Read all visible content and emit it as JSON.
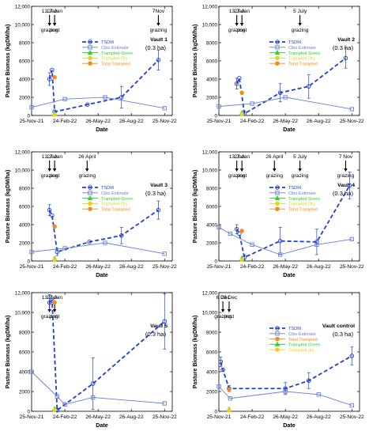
{
  "figure_colors": {
    "tsdm": "#1f3fd1",
    "cibo": "#6a7fd8",
    "trampled_green": "#2bd42b",
    "trampled_dry": "#e8d21a",
    "total_trampled": "#f08a1c",
    "axis": "#000000"
  },
  "chart_data": [
    {
      "id": "v1",
      "type": "line",
      "title": "Vault 1",
      "subtitle": "(0.3 ha)",
      "xlabel": "Date",
      "ylabel": "Pasture Biomass (kgDM/ha)",
      "xlim": [
        0,
        385
      ],
      "ylim": [
        0,
        12000
      ],
      "yticks": [
        0,
        2000,
        4000,
        6000,
        8000,
        10000,
        12000
      ],
      "ytick_labels": [
        "0",
        "2000",
        "4000",
        "6000",
        "8000",
        "10,000",
        "12,000"
      ],
      "xticks": [
        0,
        91,
        182,
        273,
        364
      ],
      "xtick_labels": [
        "25-Nov-21",
        "24-Feb-22",
        "26-May-22",
        "26-Aug-22",
        "25-Nov-22"
      ],
      "legend": [
        "TSDM",
        "Cibo Estimate",
        "Trampled Green",
        "Trampled Dry",
        "Total Trampled"
      ],
      "events": [
        {
          "x": 49,
          "top": "13 Jan",
          "bottom": "grazing"
        },
        {
          "x": 63,
          "top": "27 Jan",
          "bottom": "post"
        },
        {
          "x": 347,
          "top": "7Nov",
          "bottom": "grazing"
        }
      ],
      "series": [
        {
          "name": "TSDM",
          "x": [
            49,
            56,
            63,
            153,
            246,
            347
          ],
          "y": [
            4000,
            5000,
            400,
            1200,
            2000,
            6100
          ],
          "err": [
            700,
            0,
            200,
            0,
            1200,
            1100
          ]
        },
        {
          "name": "Cibo Estimate",
          "x": [
            0,
            91,
            201,
            364
          ],
          "y": [
            900,
            1800,
            2000,
            800
          ]
        },
        {
          "name": "Trampled Green",
          "x": [
            63
          ],
          "y": [
            200
          ]
        },
        {
          "name": "Trampled Dry",
          "x": [
            63
          ],
          "y": [
            100
          ]
        },
        {
          "name": "Total Trampled",
          "x": [
            63
          ],
          "y": [
            4200
          ]
        }
      ]
    },
    {
      "id": "v2",
      "type": "line",
      "title": "Vault 2",
      "subtitle": "(0.3 ha)",
      "xlabel": "Date",
      "ylabel": "Pasture Biomass (kgDM/ha)",
      "xlim": [
        0,
        385
      ],
      "ylim": [
        0,
        12000
      ],
      "yticks": [
        0,
        2000,
        4000,
        6000,
        8000,
        10000,
        12000
      ],
      "ytick_labels": [
        "0",
        "2000",
        "4000",
        "6000",
        "8000",
        "10,000",
        "12,000"
      ],
      "xticks": [
        0,
        91,
        182,
        273,
        364
      ],
      "xtick_labels": [
        "25-Nov-21",
        "24-Feb-22",
        "26-May-22",
        "26-Aug-22",
        "25-Nov-22"
      ],
      "legend": [
        "TSDM",
        "Cibo Estimate",
        "Trampled Green",
        "Trampled Dry",
        "Total Trampled"
      ],
      "events": [
        {
          "x": 49,
          "top": "13 Jan",
          "bottom": "grazing"
        },
        {
          "x": 63,
          "top": "27 Jan",
          "bottom": "post"
        },
        {
          "x": 222,
          "top": "5 July",
          "bottom": "grazing"
        }
      ],
      "series": [
        {
          "name": "TSDM",
          "x": [
            49,
            56,
            70,
            168,
            246,
            347
          ],
          "y": [
            3500,
            4100,
            200,
            2500,
            3200,
            6300
          ],
          "err": [
            600,
            0,
            300,
            1000,
            1300,
            1100
          ]
        },
        {
          "name": "Cibo Estimate",
          "x": [
            0,
            91,
            182,
            364
          ],
          "y": [
            1000,
            1300,
            2000,
            700
          ]
        },
        {
          "name": "Trampled Green",
          "x": [
            63
          ],
          "y": [
            300
          ]
        },
        {
          "name": "Trampled Dry",
          "x": [
            63
          ],
          "y": [
            150
          ]
        },
        {
          "name": "Total Trampled",
          "x": [
            63
          ],
          "y": [
            2500
          ]
        }
      ]
    },
    {
      "id": "v3",
      "type": "line",
      "title": "Vault 3",
      "subtitle": "(0.3 ha)",
      "xlabel": "Date",
      "ylabel": "Pasture Biomass (kgDM/ha)",
      "xlim": [
        0,
        385
      ],
      "ylim": [
        0,
        12000
      ],
      "yticks": [
        0,
        2000,
        4000,
        6000,
        8000,
        10000,
        12000
      ],
      "ytick_labels": [
        "0",
        "2000",
        "4000",
        "6000",
        "8000",
        "10,000",
        "12,000"
      ],
      "xticks": [
        0,
        91,
        182,
        273,
        364
      ],
      "xtick_labels": [
        "25-Nov-21",
        "24-Feb-22",
        "26-May-22",
        "26-Aug-22",
        "25-Nov-22"
      ],
      "legend": [
        "TSDM",
        "Cibo Estimate",
        "Trampled Green",
        "Trampled Dry",
        "Total Trampled"
      ],
      "events": [
        {
          "x": 49,
          "top": "13 Jan",
          "bottom": "grazing"
        },
        {
          "x": 63,
          "top": "27 Jan",
          "bottom": "post"
        },
        {
          "x": 152,
          "top": "26 April",
          "bottom": "grazing"
        }
      ],
      "series": [
        {
          "name": "TSDM",
          "x": [
            49,
            56,
            70,
            158,
            246,
            347
          ],
          "y": [
            5600,
            5000,
            1000,
            2100,
            2800,
            5600
          ],
          "err": [
            600,
            0,
            400,
            0,
            900,
            1000
          ]
        },
        {
          "name": "Cibo Estimate",
          "x": [
            0,
            91,
            201,
            364
          ],
          "y": [
            1000,
            1400,
            2000,
            800
          ]
        },
        {
          "name": "Trampled Green",
          "x": [
            63
          ],
          "y": [
            250
          ]
        },
        {
          "name": "Trampled Dry",
          "x": [
            63
          ],
          "y": [
            120
          ]
        },
        {
          "name": "Total Trampled",
          "x": [
            63
          ],
          "y": [
            3800
          ]
        }
      ]
    },
    {
      "id": "v4",
      "type": "line",
      "title": "Vault 4",
      "subtitle": "(0.3 ha)",
      "xlabel": "Date",
      "ylabel": "Pasture Biomass (kgDM/ha)",
      "xlim": [
        0,
        385
      ],
      "ylim": [
        0,
        12000
      ],
      "yticks": [
        0,
        2000,
        4000,
        6000,
        8000,
        10000,
        12000
      ],
      "ytick_labels": [
        "0",
        "2000",
        "4000",
        "6000",
        "8000",
        "10,000",
        "12,000"
      ],
      "xticks": [
        0,
        91,
        182,
        273,
        364
      ],
      "xtick_labels": [
        "25-Nov-21",
        "24-Feb-22",
        "26-May-22",
        "26-Aug-22",
        "25-Nov-22"
      ],
      "legend": [
        "TSDM",
        "Cibo Estimate",
        "Trampled Green",
        "Trampled Dry",
        "Total Trampled"
      ],
      "events": [
        {
          "x": 49,
          "top": "13 Jan",
          "bottom": "grazing"
        },
        {
          "x": 63,
          "top": "27 Jan",
          "bottom": "post"
        },
        {
          "x": 152,
          "top": "26 April",
          "bottom": "grazing"
        },
        {
          "x": 222,
          "top": "5 July",
          "bottom": "grazing"
        },
        {
          "x": 347,
          "top": "7 Nov",
          "bottom": "grazing"
        }
      ],
      "series": [
        {
          "name": "TSDM",
          "x": [
            49,
            56,
            70,
            168,
            268,
            358
          ],
          "y": [
            3500,
            3000,
            400,
            2200,
            2100,
            8300
          ],
          "err": [
            500,
            0,
            300,
            1500,
            1400,
            1500
          ]
        },
        {
          "name": "Cibo Estimate",
          "x": [
            0,
            31,
            91,
            168,
            268,
            364
          ],
          "y": [
            3700,
            3000,
            1800,
            700,
            1800,
            2400
          ]
        },
        {
          "name": "Trampled Green",
          "x": [
            63
          ],
          "y": [
            300
          ]
        },
        {
          "name": "Trampled Dry",
          "x": [
            63
          ],
          "y": [
            150
          ]
        },
        {
          "name": "Total Trampled",
          "x": [
            63
          ],
          "y": [
            3300
          ]
        }
      ]
    },
    {
      "id": "v5",
      "type": "line",
      "title": "Vault 5",
      "subtitle": "(0.3 ha)",
      "xlabel": "Date",
      "ylabel": "Pasture Biomass (kgDM/ha)",
      "xlim": [
        0,
        385
      ],
      "ylim": [
        0,
        12000
      ],
      "yticks": [
        0,
        2000,
        4000,
        6000,
        8000,
        10000,
        12000
      ],
      "ytick_labels": [
        "0",
        "2000",
        "4000",
        "6000",
        "8000",
        "10,000",
        "12,000"
      ],
      "xticks": [
        0,
        91,
        182,
        273,
        364
      ],
      "xtick_labels": [
        "25-Nov-21",
        "24-Feb-22",
        "26-May-22",
        "26-Aug-22",
        "25-Nov-22"
      ],
      "legend": [],
      "events": [
        {
          "x": 49,
          "top": "13 Jan",
          "bottom": "grazing"
        },
        {
          "x": 63,
          "top": "27 Jan",
          "bottom": "post"
        }
      ],
      "series": [
        {
          "name": "TSDM",
          "x": [
            49,
            56,
            70,
            168,
            364
          ],
          "y": [
            11000,
            11200,
            100,
            2800,
            9100
          ],
          "err": [
            800,
            0,
            200,
            2600,
            2800
          ]
        },
        {
          "name": "Cibo Estimate",
          "x": [
            0,
            70,
            91,
            168,
            364
          ],
          "y": [
            4000,
            1500,
            700,
            1400,
            800
          ]
        },
        {
          "name": "Trampled Green",
          "x": [
            63
          ],
          "y": [
            250
          ]
        },
        {
          "name": "Trampled Dry",
          "x": [
            63
          ],
          "y": [
            120
          ]
        },
        {
          "name": "Total Trampled",
          "x": [
            63
          ],
          "y": [
            11000
          ]
        }
      ]
    },
    {
      "id": "vc",
      "type": "line",
      "title": "Vault control",
      "subtitle": "(0.3 ha)",
      "xlabel": "Date",
      "ylabel": "Pasture Biomass (kgDM/ha)",
      "xlim": [
        0,
        385
      ],
      "ylim": [
        0,
        12000
      ],
      "yticks": [
        0,
        2000,
        4000,
        6000,
        8000,
        10000,
        12000
      ],
      "ytick_labels": [
        "0",
        "2000",
        "4000",
        "6000",
        "8000",
        "10,000",
        "12,000"
      ],
      "xticks": [
        0,
        91,
        182,
        273,
        364
      ],
      "xtick_labels": [
        "25-Nov-21",
        "24-Feb-22",
        "26-May-22",
        "26-Aug-22",
        "25-Nov-22"
      ],
      "legend": [
        "TSDM",
        "Cibo Estimate",
        "Total Trampled",
        "Trampled Green",
        "Trampled dry"
      ],
      "events": [
        {
          "x": 11,
          "top": "6 Dec",
          "bottom": "grazing"
        },
        {
          "x": 28,
          "top": "23 Dec",
          "bottom": "post"
        }
      ],
      "series": [
        {
          "name": "TSDM",
          "x": [
            5,
            11,
            28,
            182,
            246,
            364
          ],
          "y": [
            5000,
            4200,
            2300,
            2300,
            3100,
            5600
          ],
          "err": [
            500,
            0,
            300,
            600,
            800,
            900
          ]
        },
        {
          "name": "Cibo Estimate",
          "x": [
            0,
            31,
            182,
            273,
            364
          ],
          "y": [
            2500,
            1300,
            2000,
            1700,
            600
          ]
        },
        {
          "name": "Trampled Green",
          "x": [
            28
          ],
          "y": [
            200
          ]
        },
        {
          "name": "Trampled Dry",
          "x": [
            28
          ],
          "y": [
            100
          ]
        },
        {
          "name": "Total Trampled",
          "x": [
            28
          ],
          "y": [
            2200
          ]
        }
      ]
    }
  ]
}
